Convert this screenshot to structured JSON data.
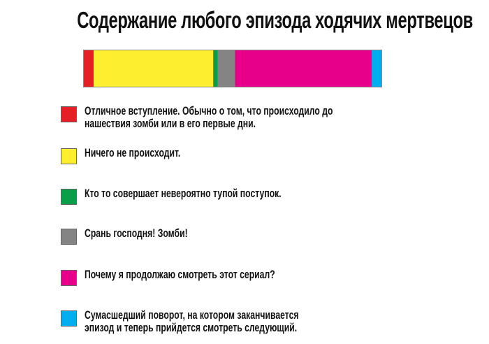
{
  "chart_data": {
    "type": "bar",
    "orientation": "horizontal-stacked-100",
    "title": "Содержание любого эпизода ходячих мертвецов",
    "unit": "percent",
    "legend_placement": "bottom",
    "grid": false,
    "series": [
      {
        "name": "Отличное вступление. Обычно о том, что происходило  до нашествия зомби или в его первые дни.",
        "lines": [
          "Отличное вступление. Обычно о том, что происходило  до",
          "нашествия зомби или в его первые дни."
        ],
        "value": 3.5,
        "color": "#e41f26"
      },
      {
        "name": "Ничего не происходит.",
        "lines": [
          "Ничего не происходит."
        ],
        "value": 40.0,
        "color": "#fdee30"
      },
      {
        "name": "Кто то совершает невероятно тупой поступок.",
        "lines": [
          "Кто то совершает невероятно тупой поступок."
        ],
        "value": 1.5,
        "color": "#0a9e48"
      },
      {
        "name": "Срань господня! Зомби!",
        "lines": [
          "Срань господня! Зомби!"
        ],
        "value": 5.8,
        "color": "#848484"
      },
      {
        "name": "Почему я продолжаю смотреть этот сериал?",
        "lines": [
          "Почему я продолжаю смотреть этот сериал?"
        ],
        "value": 45.7,
        "color": "#e6008a"
      },
      {
        "name": "Сумасшедший поворот, на котором заканчивается эпизод и теперь прийдется смотреть следующий.",
        "lines": [
          "Сумасшедший поворот, на котором заканчивается",
          "эпизод и теперь прийдется смотреть следующий."
        ],
        "value": 3.5,
        "color": "#00aeef"
      }
    ]
  }
}
